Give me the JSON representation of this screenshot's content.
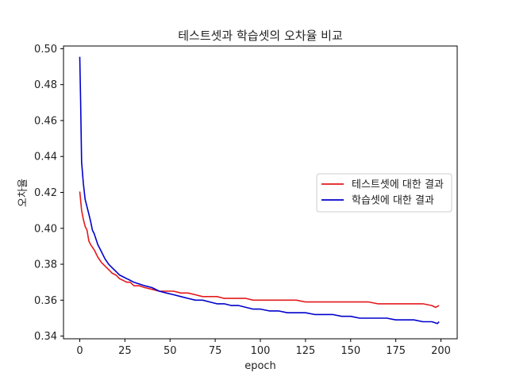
{
  "chart_data": {
    "type": "line",
    "title": "테스트셋과 학습셋의 오차율 비교",
    "xlabel": "epoch",
    "ylabel": "오차율",
    "xlim": [
      -9,
      209
    ],
    "ylim": [
      0.3385,
      0.5015
    ],
    "xticks": [
      0,
      25,
      50,
      75,
      100,
      125,
      150,
      175,
      200
    ],
    "yticks": [
      0.34,
      0.36,
      0.38,
      0.4,
      0.42,
      0.44,
      0.46,
      0.48,
      0.5
    ],
    "ytick_labels": [
      "0.34",
      "0.36",
      "0.38",
      "0.40",
      "0.42",
      "0.44",
      "0.46",
      "0.48",
      "0.50"
    ],
    "legend_position": "center-right",
    "grid": false,
    "series": [
      {
        "name": "테스트셋에 대한 결과",
        "color": "#e31a1c",
        "x": [
          0,
          1,
          2,
          3,
          4,
          5,
          6,
          8,
          10,
          12,
          14,
          16,
          18,
          20,
          22,
          24,
          26,
          28,
          30,
          33,
          36,
          40,
          44,
          48,
          52,
          56,
          60,
          64,
          68,
          72,
          76,
          80,
          84,
          88,
          92,
          96,
          100,
          105,
          110,
          115,
          120,
          125,
          130,
          135,
          140,
          145,
          150,
          155,
          160,
          165,
          170,
          175,
          180,
          185,
          190,
          195,
          197,
          199
        ],
        "values": [
          0.4205,
          0.41,
          0.405,
          0.401,
          0.399,
          0.393,
          0.391,
          0.388,
          0.384,
          0.381,
          0.379,
          0.377,
          0.375,
          0.374,
          0.372,
          0.371,
          0.37,
          0.37,
          0.368,
          0.368,
          0.367,
          0.366,
          0.365,
          0.365,
          0.365,
          0.364,
          0.364,
          0.363,
          0.362,
          0.362,
          0.362,
          0.361,
          0.361,
          0.361,
          0.361,
          0.36,
          0.36,
          0.36,
          0.36,
          0.36,
          0.36,
          0.359,
          0.359,
          0.359,
          0.359,
          0.359,
          0.359,
          0.359,
          0.359,
          0.358,
          0.358,
          0.358,
          0.358,
          0.358,
          0.358,
          0.357,
          0.356,
          0.357
        ]
      },
      {
        "name": "학습셋에 대한 결과",
        "color": "#0000cc",
        "x": [
          0,
          0.5,
          1,
          2,
          3,
          4,
          5,
          6,
          7,
          8,
          10,
          12,
          14,
          16,
          18,
          20,
          22,
          24,
          26,
          28,
          30,
          33,
          36,
          40,
          44,
          48,
          52,
          56,
          60,
          64,
          68,
          72,
          76,
          80,
          84,
          88,
          92,
          96,
          100,
          105,
          110,
          115,
          120,
          125,
          130,
          135,
          140,
          145,
          150,
          155,
          160,
          165,
          170,
          175,
          180,
          185,
          190,
          195,
          198,
          199
        ],
        "values": [
          0.4955,
          0.47,
          0.437,
          0.425,
          0.416,
          0.412,
          0.408,
          0.404,
          0.399,
          0.397,
          0.391,
          0.387,
          0.383,
          0.38,
          0.378,
          0.376,
          0.374,
          0.373,
          0.372,
          0.371,
          0.37,
          0.369,
          0.368,
          0.367,
          0.365,
          0.364,
          0.363,
          0.362,
          0.361,
          0.36,
          0.36,
          0.359,
          0.358,
          0.358,
          0.357,
          0.357,
          0.356,
          0.355,
          0.355,
          0.354,
          0.354,
          0.353,
          0.353,
          0.353,
          0.352,
          0.352,
          0.352,
          0.351,
          0.351,
          0.35,
          0.35,
          0.35,
          0.35,
          0.349,
          0.349,
          0.349,
          0.348,
          0.348,
          0.347,
          0.348
        ]
      }
    ]
  }
}
